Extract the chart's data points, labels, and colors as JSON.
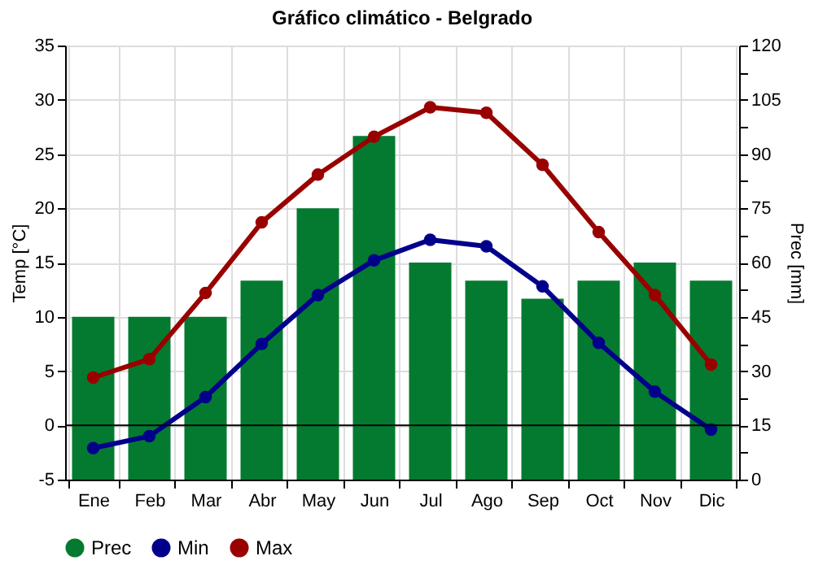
{
  "chart_data": {
    "type": "bar",
    "title": "Gráfico climático - Belgrado",
    "ylabel": "Temp [°C]",
    "y2label": "Prec [mm]",
    "categories": [
      "Ene",
      "Feb",
      "Mar",
      "Abr",
      "May",
      "Jun",
      "Jul",
      "Ago",
      "Sep",
      "Oct",
      "Nov",
      "Dic"
    ],
    "series": [
      {
        "name": "Prec",
        "axis": "y2",
        "color": "#047a30",
        "values": [
          45,
          45,
          45,
          55,
          75,
          95,
          60,
          55,
          50,
          55,
          60,
          55
        ]
      },
      {
        "name": "Min",
        "type": "line",
        "color": "#00008b",
        "values": [
          -2.1,
          -1.0,
          2.6,
          7.5,
          12.0,
          15.2,
          17.1,
          16.5,
          12.8,
          7.6,
          3.1,
          -0.4
        ]
      },
      {
        "name": "Max",
        "type": "line",
        "color": "#990000",
        "values": [
          4.4,
          6.1,
          12.2,
          18.7,
          23.1,
          26.6,
          29.3,
          28.8,
          24.0,
          17.8,
          12.0,
          5.6
        ]
      }
    ],
    "ylim": [
      -5,
      35
    ],
    "yticks": [
      -5,
      0,
      5,
      10,
      15,
      20,
      25,
      30,
      35
    ],
    "y2lim": [
      0,
      120
    ],
    "y2ticks": [
      0,
      {
        "value": 7.5,
        "label": null
      },
      15,
      {
        "value": 22.5,
        "label": null
      },
      30,
      {
        "value": 37.5,
        "label": null
      },
      45,
      {
        "value": 52.5,
        "label": null
      },
      60,
      {
        "value": 67.5,
        "label": null
      },
      75,
      {
        "value": 82.5,
        "label": null
      },
      90,
      {
        "value": 97.5,
        "label": null
      },
      105,
      {
        "value": 112.5,
        "label": null
      },
      120
    ],
    "ref_lines": [
      {
        "axis": "y",
        "value": 0,
        "color": "#000000"
      }
    ],
    "grid": true,
    "legend": "bottom",
    "marker": "circle",
    "line_style": "solid"
  }
}
